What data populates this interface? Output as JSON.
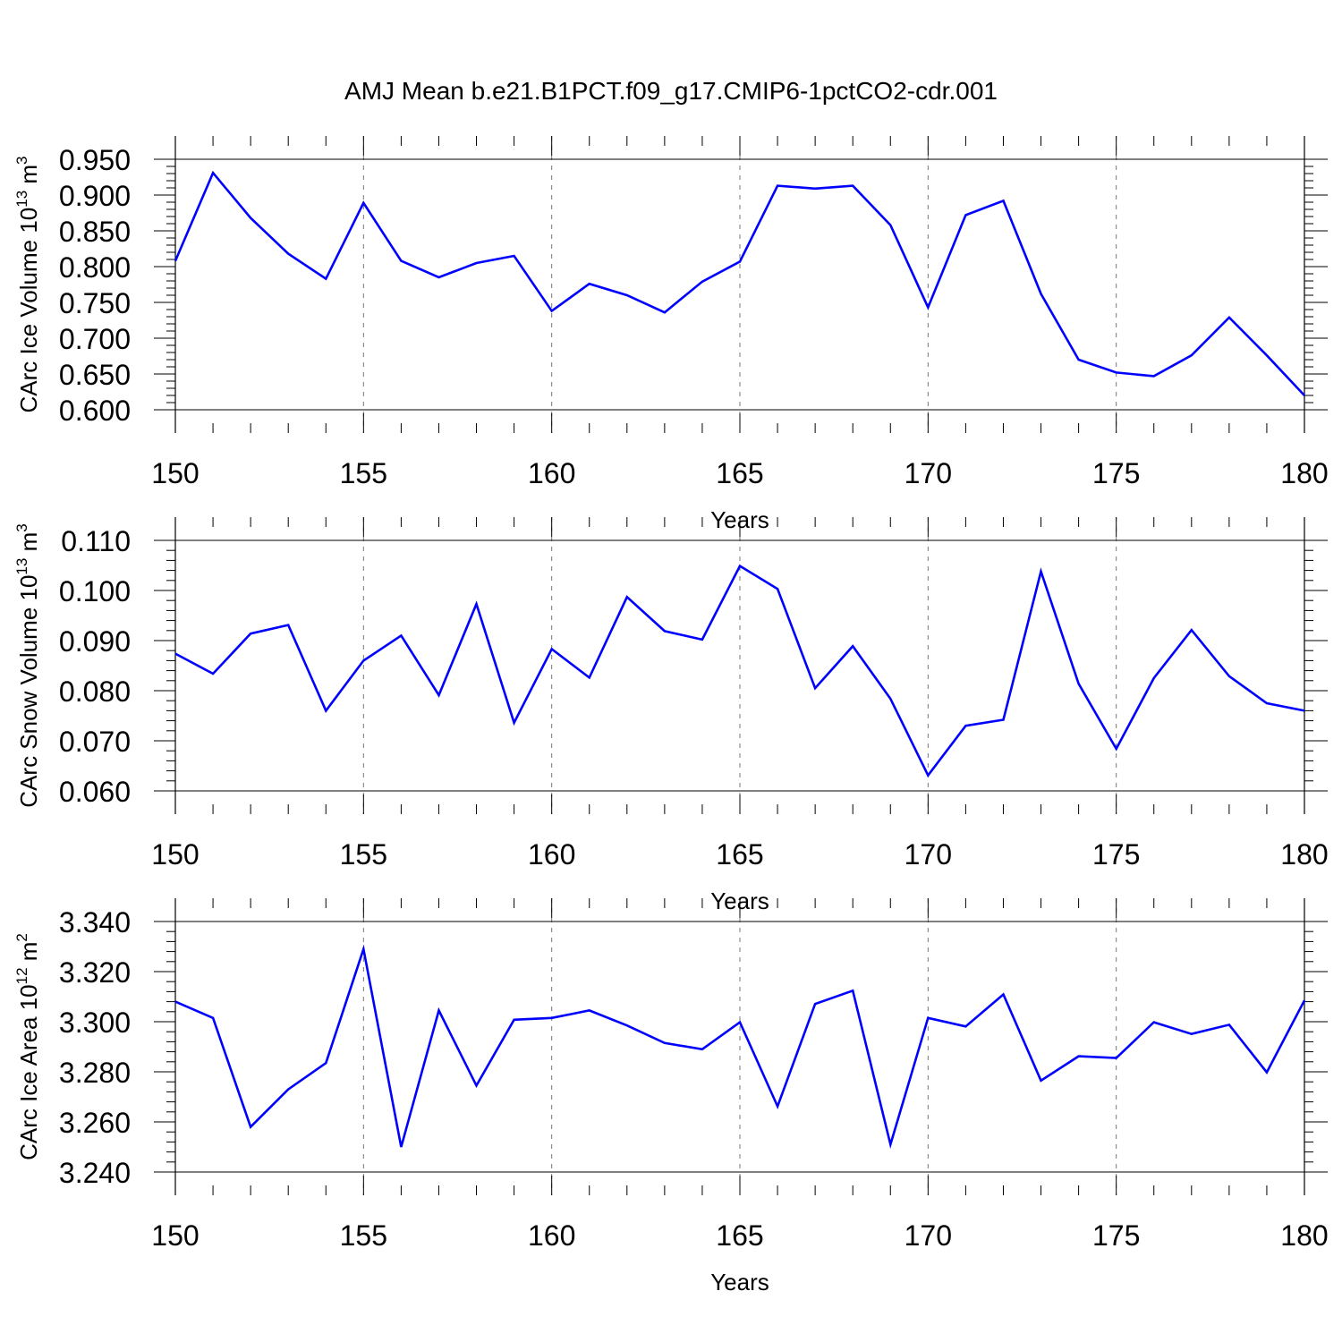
{
  "title": "AMJ Mean b.e21.B1PCT.f09_g17.CMIP6-1pctCO2-cdr.001",
  "colors": {
    "line": "#0000ff",
    "axis": "#000000",
    "grid": "#777777"
  },
  "chart_data": [
    {
      "type": "line",
      "xlabel": "Years",
      "ylabel": {
        "main": "CArc Ice Volume 10",
        "sup": "13",
        "unit": " m",
        "unit_sup": "3"
      },
      "xlim": [
        150,
        180
      ],
      "ylim": [
        0.6,
        0.95
      ],
      "xticks": [
        "150",
        "155",
        "160",
        "165",
        "170",
        "175",
        "180"
      ],
      "yticks": [
        "0.600",
        "0.650",
        "0.700",
        "0.750",
        "0.800",
        "0.850",
        "0.900",
        "0.950"
      ],
      "x": [
        150,
        151,
        152,
        153,
        154,
        155,
        156,
        157,
        158,
        159,
        160,
        161,
        162,
        163,
        164,
        165,
        166,
        167,
        168,
        169,
        170,
        171,
        172,
        173,
        174,
        175,
        176,
        177,
        178,
        179,
        180
      ],
      "values": [
        0.808,
        0.931,
        0.868,
        0.818,
        0.783,
        0.889,
        0.808,
        0.785,
        0.805,
        0.815,
        0.738,
        0.776,
        0.76,
        0.736,
        0.779,
        0.807,
        0.913,
        0.909,
        0.913,
        0.858,
        0.743,
        0.872,
        0.892,
        0.762,
        0.67,
        0.652,
        0.647,
        0.676,
        0.729,
        0.676,
        0.62
      ],
      "grid": "dashed vertical lines at major x ticks"
    },
    {
      "type": "line",
      "xlabel": "Years",
      "ylabel": {
        "main": "CArc Snow Volume 10",
        "sup": "13",
        "unit": " m",
        "unit_sup": "3"
      },
      "xlim": [
        150,
        180
      ],
      "ylim": [
        0.06,
        0.11
      ],
      "xticks": [
        "150",
        "155",
        "160",
        "165",
        "170",
        "175",
        "180"
      ],
      "yticks": [
        "0.060",
        "0.070",
        "0.080",
        "0.090",
        "0.100",
        "0.110"
      ],
      "x": [
        150,
        151,
        152,
        153,
        154,
        155,
        156,
        157,
        158,
        159,
        160,
        161,
        162,
        163,
        164,
        165,
        166,
        167,
        168,
        169,
        170,
        171,
        172,
        173,
        174,
        175,
        176,
        177,
        178,
        179,
        180
      ],
      "values": [
        0.0874,
        0.0834,
        0.0914,
        0.0931,
        0.076,
        0.086,
        0.091,
        0.0791,
        0.0973,
        0.0736,
        0.0883,
        0.0826,
        0.0987,
        0.0919,
        0.0902,
        0.1049,
        0.1003,
        0.0805,
        0.0889,
        0.0784,
        0.0631,
        0.073,
        0.0742,
        0.1038,
        0.0814,
        0.0684,
        0.0825,
        0.0921,
        0.0829,
        0.0775,
        0.076
      ],
      "grid": "dashed vertical lines at major x ticks"
    },
    {
      "type": "line",
      "xlabel": "Years",
      "ylabel": {
        "main": "CArc Ice Area 10",
        "sup": "12",
        "unit": " m",
        "unit_sup": "2"
      },
      "xlim": [
        150,
        180
      ],
      "ylim": [
        3.24,
        3.34
      ],
      "xticks": [
        "150",
        "155",
        "160",
        "165",
        "170",
        "175",
        "180"
      ],
      "yticks": [
        "3.240",
        "3.260",
        "3.280",
        "3.300",
        "3.320",
        "3.340"
      ],
      "x": [
        150,
        151,
        152,
        153,
        154,
        155,
        156,
        157,
        158,
        159,
        160,
        161,
        162,
        163,
        164,
        165,
        166,
        167,
        168,
        169,
        170,
        171,
        172,
        173,
        174,
        175,
        176,
        177,
        178,
        179,
        180
      ],
      "values": [
        3.308,
        3.3015,
        3.258,
        3.273,
        3.2835,
        3.329,
        3.25,
        3.3045,
        3.2745,
        3.3008,
        3.3015,
        3.3045,
        3.2985,
        3.2915,
        3.289,
        3.2998,
        3.2662,
        3.3071,
        3.3124,
        3.251,
        3.3015,
        3.2981,
        3.3109,
        3.2765,
        3.2862,
        3.2855,
        3.2998,
        3.2951,
        3.2988,
        3.2798,
        3.3085
      ],
      "grid": "dashed vertical lines at major x ticks"
    }
  ]
}
